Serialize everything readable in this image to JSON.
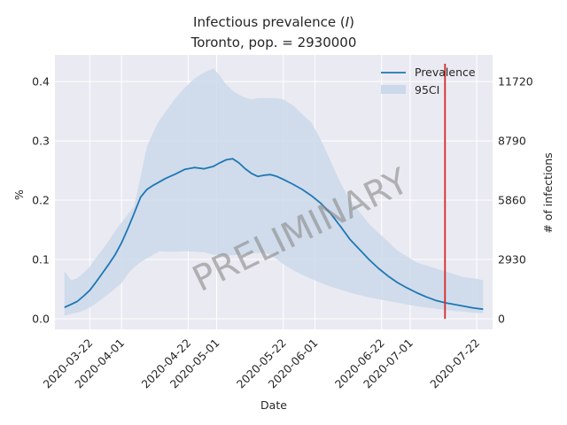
{
  "chart_data": {
    "type": "line",
    "title_line1": "Infectious prevalence (",
    "title_italic": "I",
    "title_line1_end": ")",
    "title_line2": "Toronto, pop. = 2930000",
    "xlabel": "Date",
    "ylabel": "%",
    "ylabel_right": "# of infections",
    "watermark": "PRELIMINARY",
    "grid": true,
    "legend_position": "top-right",
    "x_ticks": [
      "2020-03-22",
      "2020-04-01",
      "2020-04-22",
      "2020-05-01",
      "2020-05-22",
      "2020-06-01",
      "2020-06-22",
      "2020-07-01",
      "2020-07-22"
    ],
    "y_ticks": [
      "0.0",
      "0.1",
      "0.2",
      "0.3",
      "0.4"
    ],
    "y_ticks_right": [
      "0",
      "2930",
      "5860",
      "8790",
      "11720"
    ],
    "ylim": [
      -0.018,
      0.445
    ],
    "xlim": [
      "2020-03-11",
      "2020-07-27"
    ],
    "vline_date": "2020-07-12",
    "colors": {
      "line": "#1f77b4",
      "band": "#cbd9ea",
      "vline": "#d62728",
      "background": "#eaeaf2"
    },
    "series": [
      {
        "name": "Prevalence",
        "x": [
          "2020-03-14",
          "2020-03-16",
          "2020-03-18",
          "2020-03-20",
          "2020-03-22",
          "2020-03-24",
          "2020-03-26",
          "2020-03-28",
          "2020-03-30",
          "2020-04-01",
          "2020-04-03",
          "2020-04-05",
          "2020-04-07",
          "2020-04-09",
          "2020-04-11",
          "2020-04-13",
          "2020-04-15",
          "2020-04-18",
          "2020-04-21",
          "2020-04-24",
          "2020-04-27",
          "2020-04-30",
          "2020-05-02",
          "2020-05-04",
          "2020-05-06",
          "2020-05-08",
          "2020-05-10",
          "2020-05-12",
          "2020-05-14",
          "2020-05-16",
          "2020-05-18",
          "2020-05-20",
          "2020-05-22",
          "2020-05-25",
          "2020-05-28",
          "2020-05-31",
          "2020-06-03",
          "2020-06-06",
          "2020-06-09",
          "2020-06-12",
          "2020-06-15",
          "2020-06-18",
          "2020-06-21",
          "2020-06-24",
          "2020-06-27",
          "2020-06-30",
          "2020-07-03",
          "2020-07-06",
          "2020-07-09",
          "2020-07-12",
          "2020-07-15",
          "2020-07-18",
          "2020-07-21",
          "2020-07-24"
        ],
        "y": [
          0.019,
          0.024,
          0.029,
          0.038,
          0.048,
          0.062,
          0.077,
          0.092,
          0.108,
          0.128,
          0.152,
          0.178,
          0.205,
          0.218,
          0.225,
          0.231,
          0.237,
          0.244,
          0.252,
          0.255,
          0.253,
          0.257,
          0.263,
          0.268,
          0.27,
          0.263,
          0.253,
          0.245,
          0.24,
          0.242,
          0.243,
          0.24,
          0.235,
          0.227,
          0.218,
          0.207,
          0.194,
          0.177,
          0.156,
          0.134,
          0.117,
          0.1,
          0.085,
          0.072,
          0.061,
          0.052,
          0.044,
          0.037,
          0.031,
          0.027,
          0.024,
          0.021,
          0.018,
          0.016
        ]
      },
      {
        "name": "95CI",
        "x": [
          "2020-03-14",
          "2020-03-16",
          "2020-03-18",
          "2020-03-20",
          "2020-03-22",
          "2020-03-24",
          "2020-03-26",
          "2020-03-28",
          "2020-03-30",
          "2020-04-01",
          "2020-04-03",
          "2020-04-05",
          "2020-04-07",
          "2020-04-09",
          "2020-04-11",
          "2020-04-13",
          "2020-04-15",
          "2020-04-18",
          "2020-04-21",
          "2020-04-24",
          "2020-04-27",
          "2020-04-30",
          "2020-05-02",
          "2020-05-04",
          "2020-05-06",
          "2020-05-08",
          "2020-05-10",
          "2020-05-12",
          "2020-05-14",
          "2020-05-16",
          "2020-05-18",
          "2020-05-20",
          "2020-05-22",
          "2020-05-25",
          "2020-05-28",
          "2020-05-31",
          "2020-06-03",
          "2020-06-06",
          "2020-06-09",
          "2020-06-12",
          "2020-06-15",
          "2020-06-18",
          "2020-06-21",
          "2020-06-24",
          "2020-06-27",
          "2020-06-30",
          "2020-07-03",
          "2020-07-06",
          "2020-07-09",
          "2020-07-12",
          "2020-07-15",
          "2020-07-18",
          "2020-07-21",
          "2020-07-24"
        ],
        "upper": [
          0.08,
          0.065,
          0.068,
          0.077,
          0.088,
          0.103,
          0.117,
          0.132,
          0.148,
          0.162,
          0.176,
          0.19,
          0.24,
          0.29,
          0.315,
          0.335,
          0.35,
          0.372,
          0.39,
          0.405,
          0.415,
          0.422,
          0.41,
          0.395,
          0.385,
          0.378,
          0.373,
          0.37,
          0.372,
          0.372,
          0.372,
          0.372,
          0.37,
          0.36,
          0.345,
          0.33,
          0.3,
          0.265,
          0.23,
          0.2,
          0.18,
          0.16,
          0.145,
          0.13,
          0.115,
          0.105,
          0.095,
          0.09,
          0.085,
          0.08,
          0.075,
          0.07,
          0.068,
          0.065
        ],
        "lower": [
          0.005,
          0.008,
          0.01,
          0.014,
          0.019,
          0.026,
          0.034,
          0.042,
          0.051,
          0.06,
          0.076,
          0.087,
          0.095,
          0.102,
          0.108,
          0.114,
          0.113,
          0.113,
          0.114,
          0.113,
          0.112,
          0.108,
          0.107,
          0.107,
          0.107,
          0.108,
          0.109,
          0.11,
          0.111,
          0.111,
          0.108,
          0.1,
          0.092,
          0.082,
          0.074,
          0.067,
          0.06,
          0.054,
          0.049,
          0.044,
          0.04,
          0.036,
          0.033,
          0.03,
          0.027,
          0.024,
          0.021,
          0.019,
          0.017,
          0.015,
          0.013,
          0.012,
          0.01,
          0.009
        ]
      }
    ]
  }
}
